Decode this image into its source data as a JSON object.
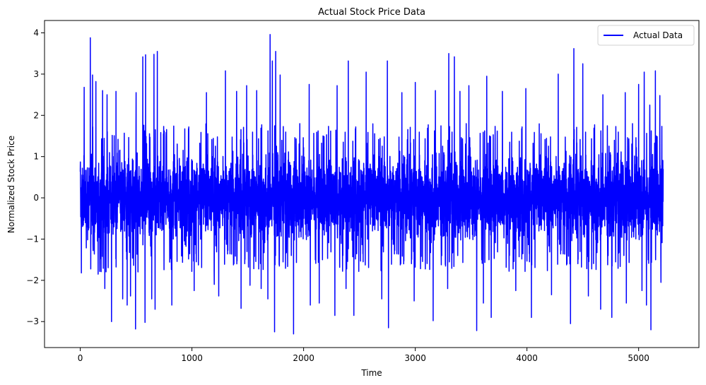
{
  "chart_data": {
    "type": "line",
    "title": "Actual Stock Price Data",
    "xlabel": "Time",
    "ylabel": "Normalized Stock Price",
    "xlim": [
      -320,
      5540
    ],
    "ylim": [
      -3.63,
      4.3
    ],
    "xticks": [
      0,
      1000,
      2000,
      3000,
      4000,
      5000
    ],
    "yticks": [
      -3,
      -2,
      -1,
      0,
      1,
      2,
      3,
      4
    ],
    "grid": false,
    "legend": {
      "position": "top-right",
      "entries": [
        "Actual Data"
      ]
    },
    "series": [
      {
        "name": "Actual Data",
        "color": "#0000ff",
        "x_range": [
          0,
          5220
        ],
        "n_points": 5221,
        "distribution": {
          "center": 0.0,
          "typical_low": -1.5,
          "typical_high": 1.5
        },
        "peaks": [
          {
            "x": 10,
            "y": 2.6
          },
          {
            "x": 35,
            "y": 2.68
          },
          {
            "x": 90,
            "y": 3.88
          },
          {
            "x": 110,
            "y": 2.98
          },
          {
            "x": 140,
            "y": 2.82
          },
          {
            "x": 200,
            "y": 2.6
          },
          {
            "x": 240,
            "y": 2.5
          },
          {
            "x": 280,
            "y": 2.9
          },
          {
            "x": 320,
            "y": 2.58
          },
          {
            "x": 450,
            "y": 2.52
          },
          {
            "x": 500,
            "y": 2.55
          },
          {
            "x": 560,
            "y": 3.42
          },
          {
            "x": 585,
            "y": 3.47
          },
          {
            "x": 640,
            "y": 2.2
          },
          {
            "x": 660,
            "y": 3.48
          },
          {
            "x": 690,
            "y": 3.55
          },
          {
            "x": 1130,
            "y": 2.55
          },
          {
            "x": 1200,
            "y": 2.5
          },
          {
            "x": 1240,
            "y": 2.85
          },
          {
            "x": 1300,
            "y": 3.08
          },
          {
            "x": 1400,
            "y": 2.58
          },
          {
            "x": 1490,
            "y": 2.72
          },
          {
            "x": 1580,
            "y": 2.6
          },
          {
            "x": 1700,
            "y": 3.96
          },
          {
            "x": 1720,
            "y": 3.32
          },
          {
            "x": 1750,
            "y": 3.55
          },
          {
            "x": 1790,
            "y": 2.98
          },
          {
            "x": 2050,
            "y": 2.75
          },
          {
            "x": 2140,
            "y": 3.22
          },
          {
            "x": 2300,
            "y": 2.72
          },
          {
            "x": 2400,
            "y": 3.32
          },
          {
            "x": 2450,
            "y": 3.32
          },
          {
            "x": 2560,
            "y": 3.05
          },
          {
            "x": 2750,
            "y": 3.32
          },
          {
            "x": 2880,
            "y": 2.55
          },
          {
            "x": 3000,
            "y": 2.8
          },
          {
            "x": 3180,
            "y": 2.6
          },
          {
            "x": 3300,
            "y": 3.5
          },
          {
            "x": 3350,
            "y": 3.42
          },
          {
            "x": 3400,
            "y": 2.58
          },
          {
            "x": 3480,
            "y": 2.72
          },
          {
            "x": 3550,
            "y": 3.02
          },
          {
            "x": 3640,
            "y": 2.95
          },
          {
            "x": 3780,
            "y": 2.58
          },
          {
            "x": 3990,
            "y": 2.65
          },
          {
            "x": 4280,
            "y": 3.0
          },
          {
            "x": 4420,
            "y": 3.62
          },
          {
            "x": 4500,
            "y": 3.25
          },
          {
            "x": 4680,
            "y": 2.5
          },
          {
            "x": 4880,
            "y": 2.55
          },
          {
            "x": 5000,
            "y": 2.75
          },
          {
            "x": 5050,
            "y": 3.05
          },
          {
            "x": 5100,
            "y": 2.25
          },
          {
            "x": 5150,
            "y": 3.08
          },
          {
            "x": 5190,
            "y": 2.48
          }
        ],
        "troughs": [
          {
            "x": 10,
            "y": -1.82
          },
          {
            "x": 160,
            "y": -1.85
          },
          {
            "x": 220,
            "y": -2.2
          },
          {
            "x": 280,
            "y": -3.0
          },
          {
            "x": 380,
            "y": -2.45
          },
          {
            "x": 420,
            "y": -2.6
          },
          {
            "x": 450,
            "y": -2.38
          },
          {
            "x": 495,
            "y": -3.18
          },
          {
            "x": 580,
            "y": -3.02
          },
          {
            "x": 640,
            "y": -2.45
          },
          {
            "x": 670,
            "y": -2.7
          },
          {
            "x": 820,
            "y": -2.6
          },
          {
            "x": 1020,
            "y": -2.25
          },
          {
            "x": 1200,
            "y": -2.1
          },
          {
            "x": 1240,
            "y": -2.38
          },
          {
            "x": 1440,
            "y": -2.68
          },
          {
            "x": 1520,
            "y": -2.12
          },
          {
            "x": 1620,
            "y": -2.2
          },
          {
            "x": 1680,
            "y": -2.45
          },
          {
            "x": 1740,
            "y": -3.25
          },
          {
            "x": 1910,
            "y": -3.3
          },
          {
            "x": 2060,
            "y": -2.6
          },
          {
            "x": 2140,
            "y": -2.55
          },
          {
            "x": 2280,
            "y": -2.85
          },
          {
            "x": 2380,
            "y": -2.2
          },
          {
            "x": 2450,
            "y": -2.85
          },
          {
            "x": 2700,
            "y": -2.45
          },
          {
            "x": 2760,
            "y": -3.15
          },
          {
            "x": 2990,
            "y": -2.5
          },
          {
            "x": 3160,
            "y": -2.98
          },
          {
            "x": 3290,
            "y": -2.2
          },
          {
            "x": 3550,
            "y": -3.22
          },
          {
            "x": 3610,
            "y": -2.55
          },
          {
            "x": 3680,
            "y": -2.9
          },
          {
            "x": 3900,
            "y": -2.25
          },
          {
            "x": 4040,
            "y": -2.9
          },
          {
            "x": 4220,
            "y": -2.35
          },
          {
            "x": 4390,
            "y": -3.05
          },
          {
            "x": 4550,
            "y": -2.38
          },
          {
            "x": 4660,
            "y": -2.7
          },
          {
            "x": 4760,
            "y": -2.9
          },
          {
            "x": 4890,
            "y": -2.55
          },
          {
            "x": 5030,
            "y": -2.25
          },
          {
            "x": 5070,
            "y": -2.6
          },
          {
            "x": 5110,
            "y": -3.2
          },
          {
            "x": 5200,
            "y": -2.05
          }
        ]
      }
    ]
  }
}
